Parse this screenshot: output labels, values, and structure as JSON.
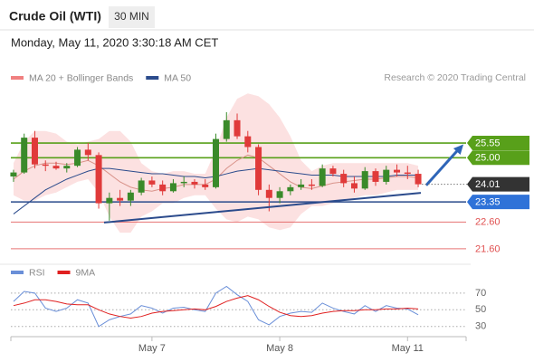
{
  "header": {
    "title": "Crude Oil (WTI)",
    "timeframe": "30 MIN",
    "timestamp": "Monday, May 11, 2020 3:30:18 AM CET"
  },
  "chart_data": [
    {
      "type": "candlestick",
      "source": "Research © 2020 Trading Central",
      "xlim": [
        0,
        171
      ],
      "ylim": [
        21.26,
        27.51
      ],
      "up_color": "#3a8a2a",
      "down_color": "#e03a3a",
      "x": [
        1,
        5,
        9,
        13,
        17,
        21,
        25,
        29,
        33,
        37,
        41,
        45,
        49,
        53,
        57,
        61,
        65,
        69,
        73,
        77,
        81,
        85,
        89,
        93,
        97,
        101,
        105,
        109,
        113,
        117,
        121,
        125,
        129,
        133,
        137,
        141,
        145,
        149,
        153
      ],
      "open": [
        24.3,
        24.45,
        25.75,
        24.75,
        24.7,
        24.6,
        24.7,
        25.3,
        25.1,
        23.3,
        23.5,
        23.4,
        23.7,
        24.15,
        24.0,
        23.75,
        24.05,
        24.1,
        24.0,
        23.9,
        25.7,
        26.4,
        25.8,
        25.4,
        23.8,
        23.5,
        23.75,
        23.9,
        24.0,
        23.95,
        24.6,
        24.4,
        24.05,
        23.85,
        24.5,
        24.1,
        24.55,
        24.45,
        24.4
      ],
      "high": [
        24.55,
        25.9,
        26.0,
        24.9,
        24.85,
        24.8,
        25.4,
        25.55,
        25.2,
        23.7,
        23.8,
        23.8,
        24.25,
        24.3,
        24.15,
        24.2,
        24.3,
        24.2,
        24.2,
        25.9,
        26.7,
        26.65,
        26.0,
        25.5,
        24.0,
        23.9,
        24.0,
        24.2,
        24.2,
        24.75,
        24.7,
        24.55,
        24.3,
        24.65,
        24.6,
        24.7,
        24.75,
        24.7,
        24.55
      ],
      "low": [
        24.1,
        24.4,
        24.6,
        24.5,
        24.55,
        24.45,
        24.65,
        24.9,
        23.1,
        22.65,
        23.2,
        23.2,
        23.6,
        23.9,
        23.6,
        23.7,
        23.9,
        23.85,
        23.8,
        23.85,
        25.6,
        25.7,
        25.2,
        23.6,
        23.0,
        23.3,
        23.6,
        23.8,
        23.8,
        23.9,
        24.3,
        23.9,
        23.7,
        23.8,
        23.95,
        24.0,
        24.3,
        24.2,
        23.9
      ],
      "close": [
        24.45,
        25.75,
        24.75,
        24.7,
        24.6,
        24.7,
        25.3,
        25.1,
        23.3,
        23.5,
        23.4,
        23.7,
        24.15,
        24.0,
        23.75,
        24.05,
        24.1,
        24.0,
        23.9,
        25.7,
        26.4,
        25.8,
        25.4,
        23.8,
        23.5,
        23.75,
        23.9,
        24.0,
        23.95,
        24.6,
        24.4,
        24.05,
        23.85,
        24.5,
        24.1,
        24.55,
        24.45,
        24.4,
        24.01
      ],
      "series": [
        {
          "name": "MA 20 + Bollinger Bands",
          "color": "#d9938a",
          "band_color": "#fbd9d9",
          "values": [
            24.2,
            24.5,
            24.7,
            24.8,
            24.8,
            24.75,
            24.8,
            24.9,
            24.7,
            24.4,
            24.1,
            23.9,
            23.8,
            23.75,
            23.85,
            23.9,
            24.0,
            24.0,
            24.0,
            24.2,
            24.6,
            24.9,
            25.1,
            25.0,
            24.7,
            24.4,
            24.1,
            23.9,
            23.85,
            23.95,
            24.05,
            24.1,
            24.15,
            24.2,
            24.2,
            24.25,
            24.3,
            24.3,
            24.25
          ],
          "upper": [
            24.8,
            25.6,
            26.0,
            26.0,
            25.9,
            25.6,
            25.5,
            25.6,
            25.7,
            26.0,
            26.0,
            25.6,
            24.8,
            24.5,
            24.4,
            24.5,
            24.5,
            24.4,
            24.4,
            25.3,
            26.5,
            27.2,
            27.4,
            27.3,
            27.0,
            26.5,
            25.8,
            24.9,
            24.5,
            24.7,
            24.8,
            24.8,
            24.8,
            24.8,
            24.8,
            24.8,
            24.8,
            24.8,
            24.7
          ],
          "lower": [
            23.6,
            23.4,
            23.4,
            23.6,
            23.7,
            23.9,
            24.1,
            24.2,
            23.7,
            22.8,
            22.2,
            22.2,
            22.8,
            23.0,
            23.3,
            23.3,
            23.5,
            23.6,
            23.6,
            23.1,
            22.7,
            22.6,
            22.8,
            22.7,
            22.4,
            22.3,
            22.4,
            22.9,
            23.2,
            23.2,
            23.3,
            23.4,
            23.5,
            23.6,
            23.6,
            23.7,
            23.8,
            23.8,
            23.8
          ]
        },
        {
          "name": "MA 50",
          "color": "#2b4b8c",
          "values": [
            22.9,
            23.2,
            23.5,
            23.8,
            24.0,
            24.2,
            24.35,
            24.5,
            24.6,
            24.6,
            24.55,
            24.5,
            24.45,
            24.4,
            24.4,
            24.35,
            24.3,
            24.3,
            24.25,
            24.3,
            24.4,
            24.5,
            24.55,
            24.6,
            24.55,
            24.5,
            24.45,
            24.4,
            24.35,
            24.35,
            24.35,
            24.3,
            24.3,
            24.3,
            24.3,
            24.3,
            24.35,
            24.35,
            24.35
          ]
        }
      ],
      "levels": [
        {
          "value": 25.55,
          "color": "#58a01a",
          "style": "box"
        },
        {
          "value": 25.0,
          "label": "25.00",
          "color": "#58a01a",
          "style": "box"
        },
        {
          "value": 24.01,
          "color": "#333333",
          "style": "current"
        },
        {
          "value": 23.35,
          "color": "#2f72d8",
          "line_color": "#2b4b8c",
          "style": "box"
        },
        {
          "value": 22.6,
          "label": "22.60",
          "color": "#e05050",
          "style": "text"
        },
        {
          "value": 21.6,
          "label": "21.60",
          "color": "#e05050",
          "style": "text"
        }
      ],
      "trendline": {
        "x": [
          35,
          154
        ],
        "y": [
          22.58,
          23.69
        ],
        "color": "#2b4b8c"
      },
      "arrow": {
        "x": [
          156,
          170
        ],
        "y": [
          23.97,
          25.5
        ],
        "color": "#2e65b8"
      }
    },
    {
      "type": "line",
      "xlim": [
        0,
        171
      ],
      "ylim": [
        20,
        85
      ],
      "yticks": [
        70,
        50,
        30
      ],
      "xticks": [
        {
          "value": 53,
          "label": "May 7"
        },
        {
          "value": 101,
          "label": "May 8"
        },
        {
          "value": 149,
          "label": "May 11"
        }
      ],
      "series": [
        {
          "name": "RSI",
          "color": "#6a8fd8",
          "values": [
            60,
            72,
            70,
            52,
            48,
            52,
            62,
            58,
            30,
            38,
            42,
            45,
            55,
            52,
            46,
            52,
            53,
            50,
            48,
            70,
            78,
            68,
            60,
            38,
            32,
            42,
            46,
            48,
            47,
            58,
            52,
            48,
            45,
            55,
            48,
            55,
            52,
            51,
            44
          ]
        },
        {
          "name": "9MA",
          "color": "#e02020",
          "values": [
            55,
            58,
            62,
            62,
            60,
            57,
            56,
            56,
            50,
            45,
            42,
            40,
            42,
            46,
            48,
            49,
            50,
            51,
            50,
            54,
            60,
            64,
            67,
            62,
            54,
            47,
            43,
            42,
            43,
            46,
            48,
            49,
            49,
            50,
            50,
            51,
            51,
            52,
            51
          ]
        }
      ]
    }
  ]
}
